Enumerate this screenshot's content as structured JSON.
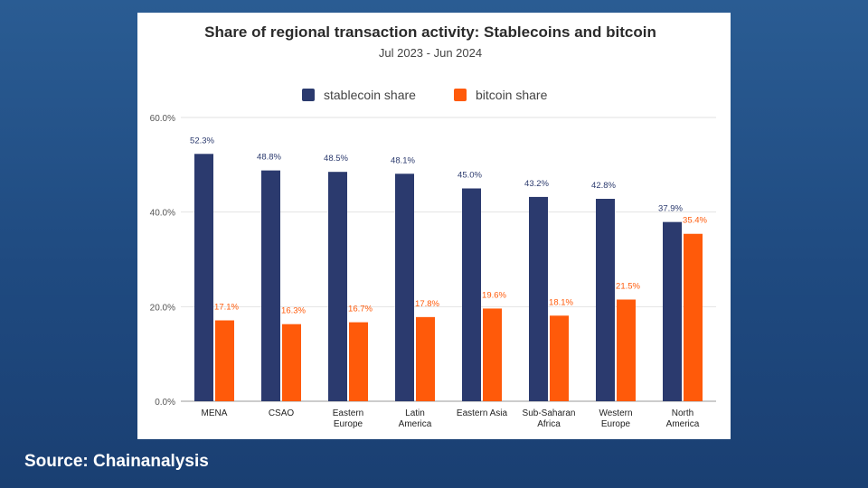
{
  "source_label": "Source: Chainanalysis",
  "colors": {
    "stablecoin": "#2b3a6e",
    "bitcoin": "#ff5a0a",
    "grid": "#e2e2e2",
    "axis": "#555555"
  },
  "chart_data": {
    "type": "bar",
    "title": "Share of regional transaction activity: Stablecoins and bitcoin",
    "subtitle": "Jul 2023 - Jun 2024",
    "categories": [
      [
        "MENA"
      ],
      [
        "CSAO"
      ],
      [
        "Eastern",
        "Europe"
      ],
      [
        "Latin",
        "America"
      ],
      [
        "Eastern Asia"
      ],
      [
        "Sub-Saharan",
        "Africa"
      ],
      [
        "Western",
        "Europe"
      ],
      [
        "North",
        "America"
      ]
    ],
    "series": [
      {
        "name": "stablecoin share",
        "values": [
          52.3,
          48.8,
          48.5,
          48.1,
          45.0,
          43.2,
          42.8,
          37.9
        ],
        "labels": [
          "52.3%",
          "48.8%",
          "48.5%",
          "48.1%",
          "45.0%",
          "43.2%",
          "42.8%",
          "37.9%"
        ]
      },
      {
        "name": "bitcoin share",
        "values": [
          17.1,
          16.3,
          16.7,
          17.8,
          19.6,
          18.1,
          21.5,
          35.4
        ],
        "labels": [
          "17.1%",
          "16.3%",
          "16.7%",
          "17.8%",
          "19.6%",
          "18.1%",
          "21.5%",
          "35.4%"
        ]
      }
    ],
    "yticks": [
      0,
      20,
      40,
      60
    ],
    "ytick_labels": [
      "0.0%",
      "20.0%",
      "40.0%",
      "60.0%"
    ],
    "ylim": [
      0,
      60
    ],
    "xlabel": "",
    "ylabel": "",
    "legend_position": "top",
    "grid": true
  }
}
